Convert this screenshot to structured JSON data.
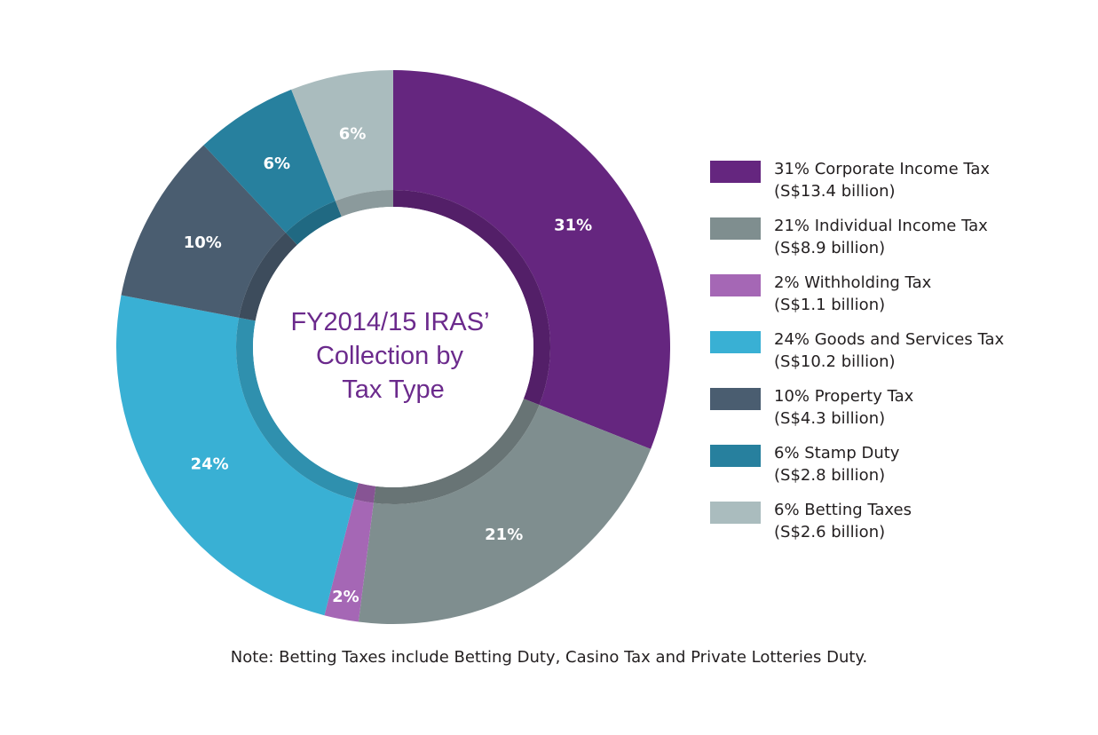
{
  "chart_data": {
    "type": "pie",
    "title": "FY2014/15 IRAS' Collection by Tax Type",
    "title_lines": [
      "FY2014/15 IRAS’",
      "Collection by",
      "Tax Type"
    ],
    "slices": [
      {
        "name": "Corporate Income Tax",
        "percent": 31,
        "value_label": "31%",
        "amount": "(S$13.4 billion)",
        "legend": "31% Corporate Income Tax",
        "color": "#65267f"
      },
      {
        "name": "Individual Income Tax",
        "percent": 21,
        "value_label": "21%",
        "amount": "(S$8.9 billion)",
        "legend": "21% Individual Income Tax",
        "color": "#7f8e8f"
      },
      {
        "name": "Withholding Tax",
        "percent": 2,
        "value_label": "2%",
        "amount": "(S$1.1 billion)",
        "legend": "2% Withholding Tax",
        "color": "#a567b5"
      },
      {
        "name": "Goods and Services Tax",
        "percent": 24,
        "value_label": "24%",
        "amount": "(S$10.2 billion)",
        "legend": "24% Goods and Services Tax",
        "color": "#39b0d4"
      },
      {
        "name": "Property Tax",
        "percent": 10,
        "value_label": "10%",
        "amount": "(S$4.3 billion)",
        "legend": "10% Property Tax",
        "color": "#4a5d70"
      },
      {
        "name": "Stamp Duty",
        "percent": 6,
        "value_label": "6%",
        "amount": "(S$2.8 billion)",
        "legend": "6% Stamp Duty",
        "color": "#27809e"
      },
      {
        "name": "Betting Taxes",
        "percent": 6,
        "value_label": "6%",
        "amount": "(S$2.6 billion)",
        "legend": "6% Betting Taxes",
        "color": "#aabcbe"
      }
    ],
    "legend_placement": "right",
    "note": "Note:  Betting Taxes include Betting Duty, Casino Tax and Private Lotteries Duty."
  }
}
